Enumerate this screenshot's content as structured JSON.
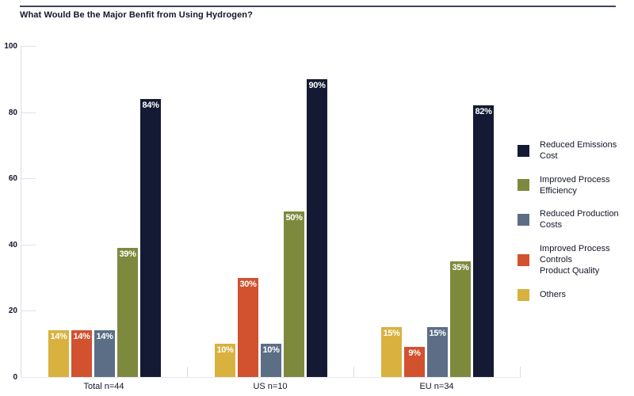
{
  "chart_data": {
    "type": "bar",
    "title": "What Would Be the Major Benfit from Using Hydrogen?",
    "categories": [
      "Total n=44",
      "US n=10",
      "EU n=34"
    ],
    "series": [
      {
        "name": "Reduced Emissions Cost",
        "label_lines": [
          "Reduced Emissions Cost"
        ],
        "color": "#141a33",
        "values": [
          84,
          90,
          82
        ]
      },
      {
        "name": "Improved Process Efficiency",
        "label_lines": [
          "Improved Process Efficiency"
        ],
        "color": "#7d8a3e",
        "values": [
          39,
          50,
          35
        ]
      },
      {
        "name": "Reduced Production Costs",
        "label_lines": [
          "Reduced Production Costs"
        ],
        "color": "#5b6e85",
        "values": [
          14,
          10,
          15
        ]
      },
      {
        "name": "Improved Process Controls Product Quality",
        "label_lines": [
          "Improved Process Controls",
          "Product Quality"
        ],
        "color": "#d2512f",
        "values": [
          14,
          30,
          9
        ]
      },
      {
        "name": "Others",
        "label_lines": [
          "Others"
        ],
        "color": "#d8b13f",
        "values": [
          14,
          10,
          15
        ]
      }
    ],
    "bar_order_left_to_right": [
      4,
      3,
      2,
      1,
      0
    ],
    "value_label_suffix": "%",
    "ylim": [
      0,
      100
    ],
    "yticks": [
      0,
      20,
      40,
      60,
      80,
      100
    ],
    "grid": false,
    "legend_position": "right"
  }
}
